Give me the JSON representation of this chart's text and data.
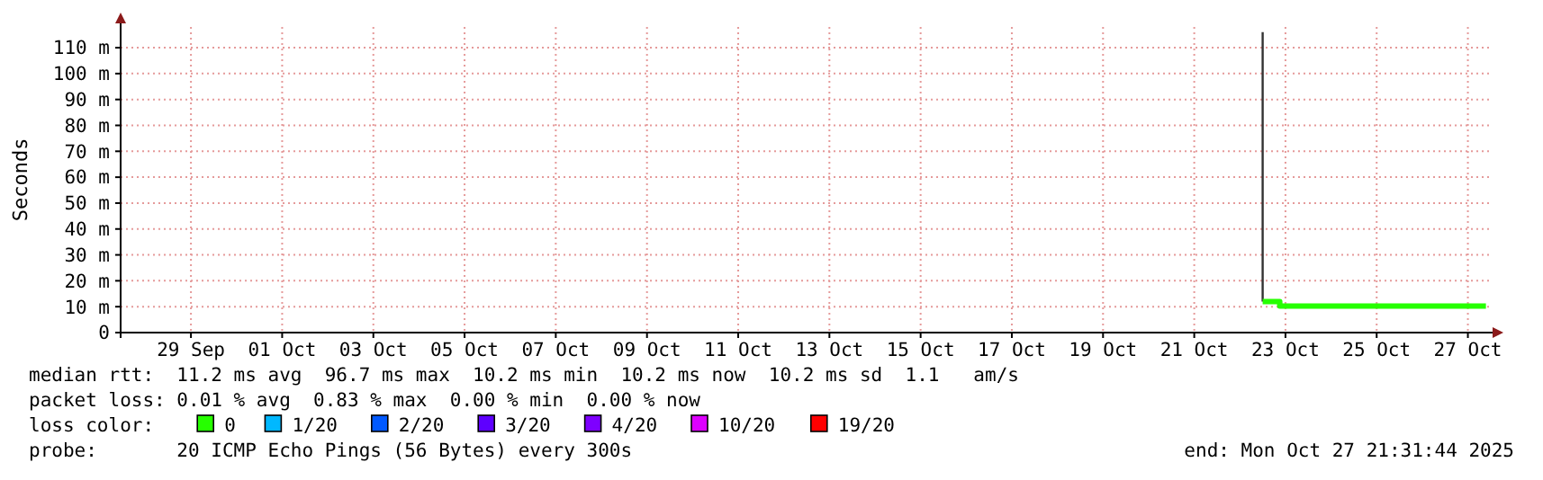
{
  "chart_data": {
    "type": "step",
    "ylabel": "Seconds",
    "legend_title": "loss color:",
    "legend": "bottom",
    "grid": true,
    "xlim": [
      "2025-09-27T23:00",
      "2025-10-28T01:00"
    ],
    "xticks": [
      {
        "value": "2025-09-29T12:00",
        "label": "29 Sep"
      },
      {
        "value": "2025-10-01T12:00",
        "label": "01 Oct"
      },
      {
        "value": "2025-10-03T12:00",
        "label": "03 Oct"
      },
      {
        "value": "2025-10-05T12:00",
        "label": "05 Oct"
      },
      {
        "value": "2025-10-07T12:00",
        "label": "07 Oct"
      },
      {
        "value": "2025-10-09T12:00",
        "label": "09 Oct"
      },
      {
        "value": "2025-10-11T12:00",
        "label": "11 Oct"
      },
      {
        "value": "2025-10-13T12:00",
        "label": "13 Oct"
      },
      {
        "value": "2025-10-15T12:00",
        "label": "15 Oct"
      },
      {
        "value": "2025-10-17T12:00",
        "label": "17 Oct"
      },
      {
        "value": "2025-10-19T12:00",
        "label": "19 Oct"
      },
      {
        "value": "2025-10-21T12:00",
        "label": "21 Oct"
      },
      {
        "value": "2025-10-23T12:00",
        "label": "23 Oct"
      },
      {
        "value": "2025-10-25T12:00",
        "label": "25 Oct"
      },
      {
        "value": "2025-10-27T12:00",
        "label": "27 Oct"
      }
    ],
    "ylim": [
      0,
      118
    ],
    "yticks": [
      0,
      {
        "value": 10,
        "label": "10 m"
      },
      {
        "value": 20,
        "label": "20 m"
      },
      {
        "value": 30,
        "label": "30 m"
      },
      {
        "value": 40,
        "label": "40 m"
      },
      {
        "value": 50,
        "label": "50 m"
      },
      {
        "value": 60,
        "label": "60 m"
      },
      {
        "value": 70,
        "label": "70 m"
      },
      {
        "value": 80,
        "label": "80 m"
      },
      {
        "value": 90,
        "label": "90 m"
      },
      {
        "value": 100,
        "label": "100 m"
      },
      {
        "value": 110,
        "label": "110 m"
      }
    ],
    "series": [
      {
        "type": "line",
        "color": "#333333",
        "x": [
          "2025-10-23T00:00",
          "2025-10-23T00:00"
        ],
        "values": [
          12,
          116
        ]
      },
      {
        "name": "0",
        "color": "#26ff00",
        "x": [
          "2025-10-23T00:00",
          "2025-10-23T09:00",
          "2025-10-27T21:30"
        ],
        "values": [
          12,
          10.2,
          10.2
        ]
      },
      {
        "name": "1/20",
        "color": "#00b8ff"
      },
      {
        "name": "2/20",
        "color": "#0059ff"
      },
      {
        "name": "3/20",
        "color": "#5e00ff"
      },
      {
        "name": "4/20",
        "color": "#7e00ff"
      },
      {
        "name": "10/20",
        "color": "#dd00ff"
      },
      {
        "name": "19/20",
        "color": "#ff0000"
      }
    ],
    "annotations": [
      "median rtt:  11.2 ms avg  96.7 ms max  10.2 ms min  10.2 ms now  10.2 ms sd  1.1   am/s",
      "packet loss: 0.01 % avg  0.83 % max  0.00 % min  0.00 % now",
      "probe:       20 ICMP Echo Pings (56 Bytes) every 300s",
      "end: Mon Oct 27 21:31:44 2025"
    ]
  }
}
